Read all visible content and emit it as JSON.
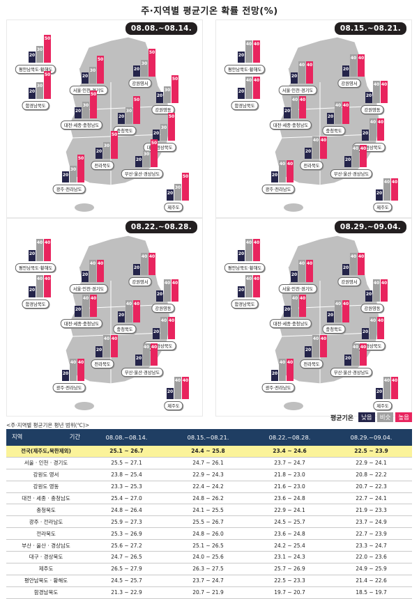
{
  "title": "주·지역별 평균기온 확률 전망(%)",
  "colors": {
    "low": "#24244a",
    "normal": "#a0a0a0",
    "high": "#e8245e",
    "header": "#1f3e63",
    "national_row": "#fbf39a"
  },
  "legend": {
    "title": "평균기온",
    "low": "낮음",
    "normal": "비슷",
    "high": "높음"
  },
  "table_caption": "<주·지역별 평균기온 평년 범위(℃)>",
  "table": {
    "header_region": "지역",
    "header_period": "기간",
    "columns": [
      "08.08.~08.14.",
      "08.15.~08.21.",
      "08.22.~08.28.",
      "08.29.~09.04."
    ],
    "rows": [
      {
        "region": "전국(제주도,북한제외)",
        "values": [
          "25.1 ~ 26.7",
          "24.4 ~ 25.8",
          "23.4 ~ 24.6",
          "22.5 ~ 23.9"
        ]
      },
      {
        "region": "서울 · 인천 · 경기도",
        "values": [
          "25.5 ~ 27.1",
          "24.7 ~ 26.1",
          "23.7 ~ 24.7",
          "22.9 ~ 24.1"
        ]
      },
      {
        "region": "강원도 영서",
        "values": [
          "23.8 ~ 25.4",
          "22.9 ~ 24.3",
          "21.8 ~ 23.0",
          "20.8 ~ 22.2"
        ]
      },
      {
        "region": "강원도 영동",
        "values": [
          "23.3 ~ 25.3",
          "22.4 ~ 24.2",
          "21.6 ~ 23.0",
          "20.7 ~ 22.3"
        ]
      },
      {
        "region": "대전 · 세종 · 충청남도",
        "values": [
          "25.4 ~ 27.0",
          "24.8 ~ 26.2",
          "23.6 ~ 24.8",
          "22.7 ~ 24.1"
        ]
      },
      {
        "region": "충청북도",
        "values": [
          "24.8 ~ 26.4",
          "24.1 ~ 25.5",
          "22.9 ~ 24.1",
          "21.9 ~ 23.3"
        ]
      },
      {
        "region": "광주 · 전라남도",
        "values": [
          "25.9 ~ 27.3",
          "25.5 ~ 26.7",
          "24.5 ~ 25.7",
          "23.7 ~ 24.9"
        ]
      },
      {
        "region": "전라북도",
        "values": [
          "25.3 ~ 26.9",
          "24.8 ~ 26.0",
          "23.6 ~ 24.8",
          "22.7 ~ 23.9"
        ]
      },
      {
        "region": "부산 · 울산 · 경상남도",
        "values": [
          "25.6 ~ 27.2",
          "25.1 ~ 26.5",
          "24.2 ~ 25.4",
          "23.3 ~ 24.7"
        ]
      },
      {
        "region": "대구 · 경상북도",
        "values": [
          "24.7 ~ 26.5",
          "24.0 ~ 25.6",
          "23.1 ~ 24.3",
          "22.0 ~ 23.6"
        ]
      },
      {
        "region": "제주도",
        "values": [
          "26.5 ~ 27.9",
          "26.3 ~ 27.5",
          "25.7 ~ 26.9",
          "24.9 ~ 25.9"
        ]
      },
      {
        "region": "평안남북도 · 황해도",
        "values": [
          "24.5 ~ 25.7",
          "23.7 ~ 24.7",
          "22.5 ~ 23.3",
          "21.4 ~ 22.6"
        ]
      },
      {
        "region": "함경남북도",
        "values": [
          "21.3 ~ 22.9",
          "20.7 ~ 21.9",
          "19.7 ~ 20.7",
          "18.5 ~ 19.7"
        ]
      }
    ]
  },
  "chart_data": {
    "type": "bar",
    "title": "주·지역별 평균기온 확률 전망(%)",
    "series_names": [
      "낮음",
      "비슷",
      "높음"
    ],
    "regions": [
      "평안남북도·황해도",
      "함경남북도",
      "서울·인천·경기도",
      "강원영서",
      "강원영동",
      "대전·세종·충청남도",
      "충청북도",
      "대구·경상북도",
      "전라북도",
      "부산·울산·경상남도",
      "광주·전라남도",
      "제주도"
    ],
    "periods": [
      {
        "label": "08.08.~08.14.",
        "values": [
          [
            20,
            30,
            50
          ],
          [
            20,
            30,
            50
          ],
          [
            20,
            30,
            50
          ],
          [
            20,
            30,
            50
          ],
          [
            20,
            30,
            50
          ],
          [
            20,
            30,
            50
          ],
          [
            20,
            30,
            50
          ],
          [
            20,
            30,
            50
          ],
          [
            20,
            30,
            50
          ],
          [
            20,
            30,
            50
          ],
          [
            20,
            30,
            50
          ],
          [
            20,
            30,
            50
          ]
        ]
      },
      {
        "label": "08.15.~08.21.",
        "values": [
          [
            20,
            40,
            40
          ],
          [
            20,
            40,
            40
          ],
          [
            20,
            40,
            40
          ],
          [
            20,
            40,
            40
          ],
          [
            20,
            40,
            40
          ],
          [
            20,
            40,
            40
          ],
          [
            20,
            40,
            40
          ],
          [
            20,
            40,
            40
          ],
          [
            20,
            40,
            40
          ],
          [
            20,
            40,
            40
          ],
          [
            20,
            40,
            40
          ],
          [
            20,
            40,
            40
          ]
        ]
      },
      {
        "label": "08.22.~08.28.",
        "values": [
          [
            20,
            40,
            40
          ],
          [
            20,
            40,
            40
          ],
          [
            20,
            40,
            40
          ],
          [
            20,
            40,
            40
          ],
          [
            20,
            40,
            40
          ],
          [
            20,
            40,
            40
          ],
          [
            20,
            40,
            40
          ],
          [
            20,
            40,
            40
          ],
          [
            20,
            40,
            40
          ],
          [
            20,
            40,
            40
          ],
          [
            20,
            40,
            40
          ],
          [
            20,
            40,
            40
          ]
        ]
      },
      {
        "label": "08.29.~09.04.",
        "values": [
          [
            20,
            40,
            40
          ],
          [
            20,
            40,
            40
          ],
          [
            20,
            40,
            40
          ],
          [
            20,
            40,
            40
          ],
          [
            20,
            40,
            40
          ],
          [
            20,
            40,
            40
          ],
          [
            20,
            40,
            40
          ],
          [
            20,
            40,
            40
          ],
          [
            20,
            40,
            40
          ],
          [
            20,
            40,
            40
          ],
          [
            20,
            40,
            40
          ],
          [
            20,
            40,
            40
          ]
        ]
      }
    ]
  }
}
